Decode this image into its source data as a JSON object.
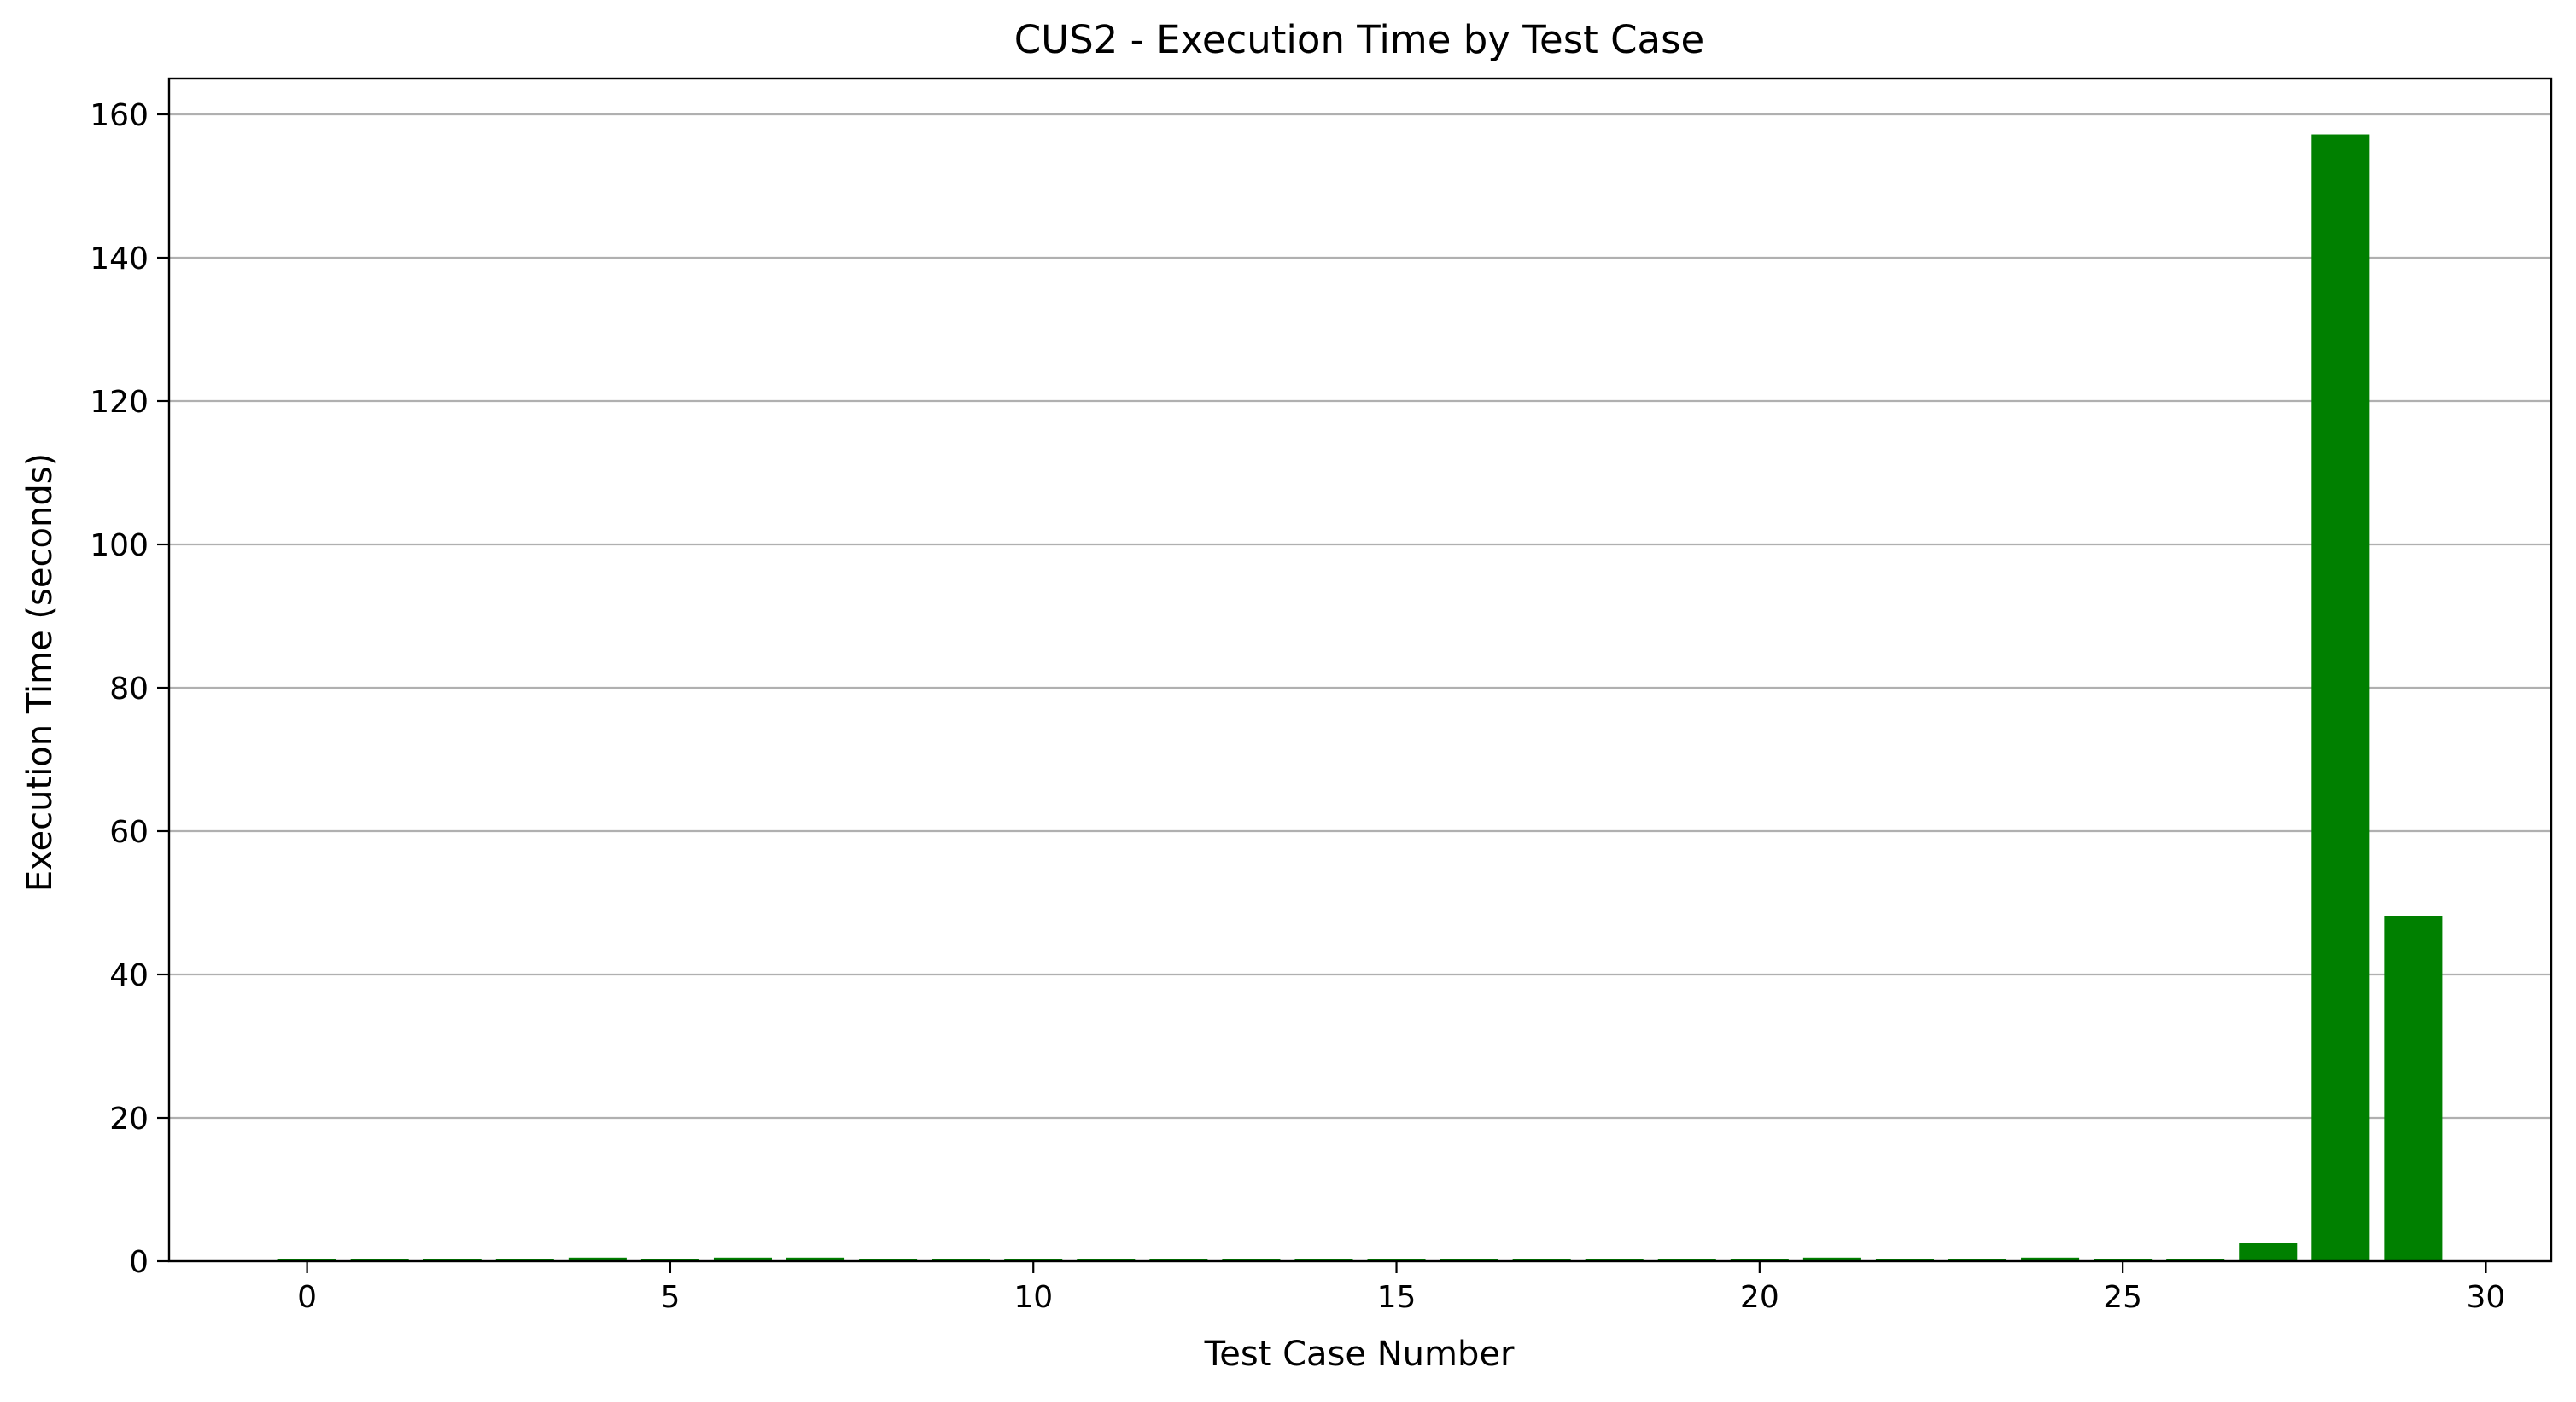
{
  "chart_data": {
    "type": "bar",
    "title": "CUS2 - Execution Time by Test Case",
    "xlabel": "Test Case Number",
    "ylabel": "Execution Time (seconds)",
    "x": [
      0,
      1,
      2,
      3,
      4,
      5,
      6,
      7,
      8,
      9,
      10,
      11,
      12,
      13,
      14,
      15,
      16,
      17,
      18,
      19,
      20,
      21,
      22,
      23,
      24,
      25,
      26,
      27,
      28,
      29
    ],
    "values": [
      0.3,
      0.3,
      0.3,
      0.3,
      0.5,
      0.3,
      0.5,
      0.5,
      0.3,
      0.3,
      0.3,
      0.3,
      0.3,
      0.3,
      0.3,
      0.3,
      0.3,
      0.3,
      0.3,
      0.3,
      0.3,
      0.5,
      0.3,
      0.3,
      0.5,
      0.3,
      0.3,
      2.5,
      157.2,
      48.2
    ],
    "xlim": [
      -1.9,
      30.9
    ],
    "ylim": [
      0,
      165
    ],
    "xticks": [
      0,
      5,
      10,
      15,
      20,
      25,
      30
    ],
    "yticks": [
      0,
      20,
      40,
      60,
      80,
      100,
      120,
      140,
      160
    ],
    "grid": "horizontal",
    "bar_color": "#008000"
  }
}
